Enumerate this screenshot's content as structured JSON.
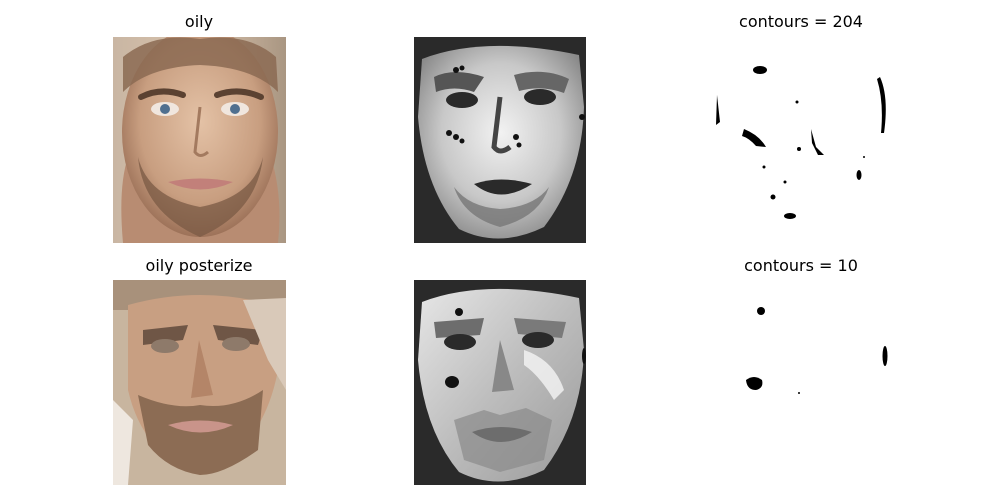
{
  "figure": {
    "rows": [
      {
        "title_left": "oily",
        "title_right": "contours = 204",
        "contour_count": 204
      },
      {
        "title_left": "oily posterize",
        "title_right": "contours = 10",
        "contour_count": 10
      }
    ],
    "colors": {
      "background": "#ffffff",
      "mask_dark": "#2a2a2a",
      "skin_light": "#d9b79c",
      "skin_mid": "#c49a7c",
      "skin_shadow": "#9c7258",
      "beard": "#7a5a44",
      "lips": "#c98a80",
      "contour_black": "#000000"
    },
    "icons": {
      "photo_original": "face-photo",
      "photo_posterized": "posterized-face-photo",
      "mask_oily": "oily-grayscale-mask",
      "mask_posterized": "posterized-grayscale-mask",
      "contours": "contour-blobs"
    }
  }
}
